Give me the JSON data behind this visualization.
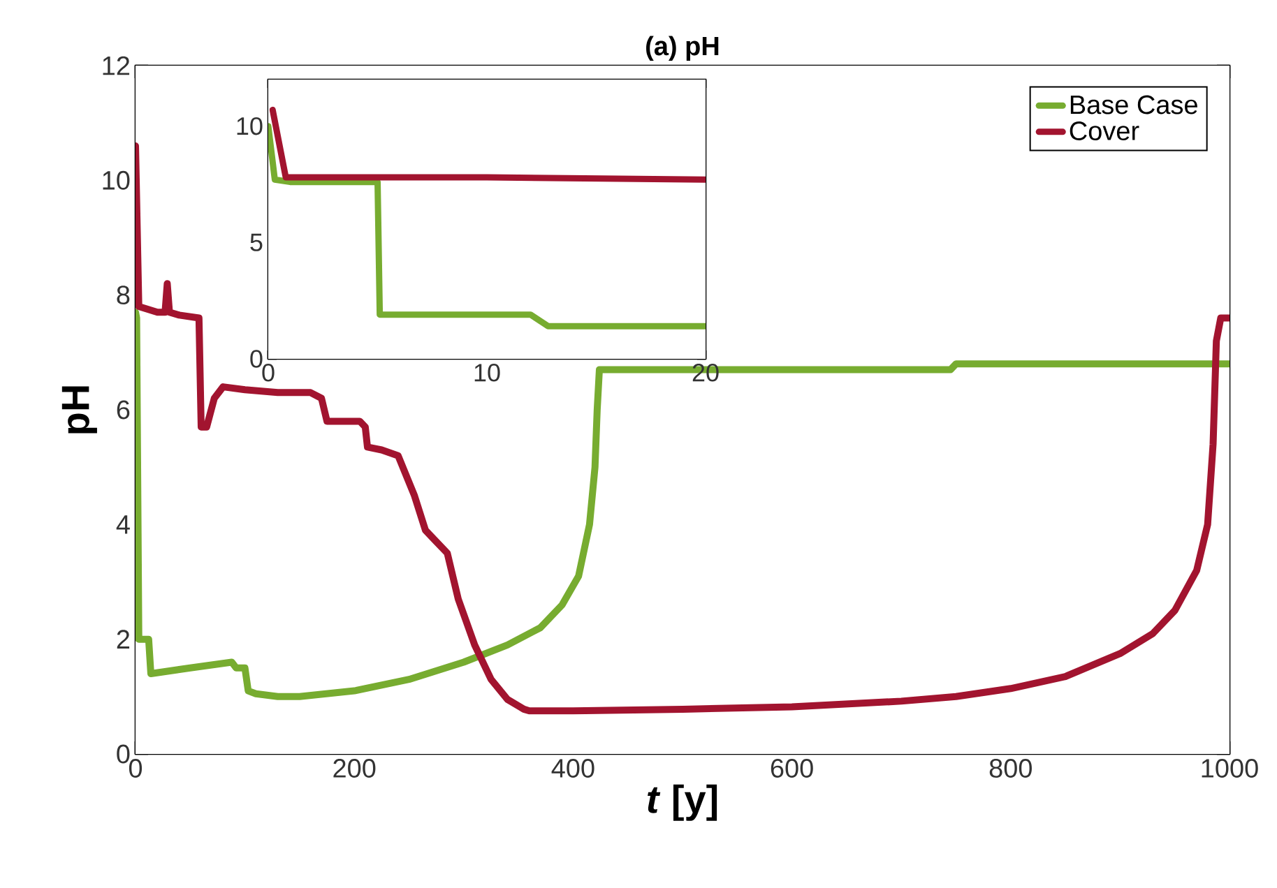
{
  "chart_data": [
    {
      "type": "line",
      "title": "(a) pH",
      "xlabel": "*t* [y]",
      "ylabel": "pH",
      "xlim": [
        0,
        1000
      ],
      "ylim": [
        0,
        12
      ],
      "xticks": [
        0,
        200,
        400,
        600,
        800,
        1000
      ],
      "yticks": [
        0,
        2,
        4,
        6,
        8,
        10,
        12
      ],
      "legend": "top right",
      "series": [
        {
          "name": "Base Case",
          "color": "#77ac30",
          "x": [
            0,
            1,
            3,
            12,
            14,
            50,
            88,
            92,
            100,
            103,
            110,
            130,
            150,
            200,
            250,
            300,
            340,
            370,
            390,
            405,
            415,
            420,
            422,
            424,
            500,
            600,
            745,
            750,
            1000
          ],
          "values": [
            7.7,
            7.6,
            2.0,
            2.0,
            1.4,
            1.5,
            1.6,
            1.5,
            1.5,
            1.1,
            1.05,
            1.0,
            1.0,
            1.1,
            1.3,
            1.6,
            1.9,
            2.2,
            2.6,
            3.1,
            4.0,
            5.0,
            6.0,
            6.7,
            6.7,
            6.7,
            6.7,
            6.8,
            6.8
          ]
        },
        {
          "name": "Cover",
          "color": "#a2142f",
          "x": [
            0,
            3,
            20,
            27,
            29,
            31,
            40,
            58,
            60,
            65,
            72,
            80,
            100,
            130,
            160,
            170,
            175,
            205,
            210,
            212,
            225,
            240,
            255,
            265,
            275,
            285,
            295,
            310,
            325,
            340,
            355,
            360,
            400,
            500,
            600,
            700,
            750,
            800,
            850,
            900,
            930,
            950,
            970,
            980,
            985,
            988,
            992,
            1000
          ],
          "values": [
            10.6,
            7.8,
            7.7,
            7.7,
            8.2,
            7.7,
            7.65,
            7.6,
            5.7,
            5.7,
            6.2,
            6.4,
            6.35,
            6.3,
            6.3,
            6.2,
            5.8,
            5.8,
            5.7,
            5.35,
            5.3,
            5.2,
            4.5,
            3.9,
            3.7,
            3.5,
            2.7,
            1.9,
            1.3,
            0.95,
            0.78,
            0.75,
            0.75,
            0.78,
            0.82,
            0.92,
            1.0,
            1.14,
            1.35,
            1.75,
            2.1,
            2.5,
            3.2,
            4.0,
            5.4,
            7.2,
            7.6,
            7.6
          ]
        }
      ]
    },
    {
      "type": "line",
      "xlim": [
        0,
        20
      ],
      "ylim": [
        0,
        12
      ],
      "xticks": [
        0,
        10,
        20
      ],
      "yticks": [
        0,
        5,
        10
      ],
      "series": [
        {
          "color": "#77ac30",
          "x": [
            0,
            0.3,
            1,
            5,
            5.1,
            12,
            12.8,
            20
          ],
          "values": [
            10,
            7.7,
            7.6,
            7.6,
            1.9,
            1.9,
            1.4,
            1.4
          ]
        },
        {
          "color": "#a2142f",
          "x": [
            0.2,
            0.8,
            10,
            20
          ],
          "values": [
            10.7,
            7.8,
            7.8,
            7.7
          ]
        }
      ]
    }
  ]
}
